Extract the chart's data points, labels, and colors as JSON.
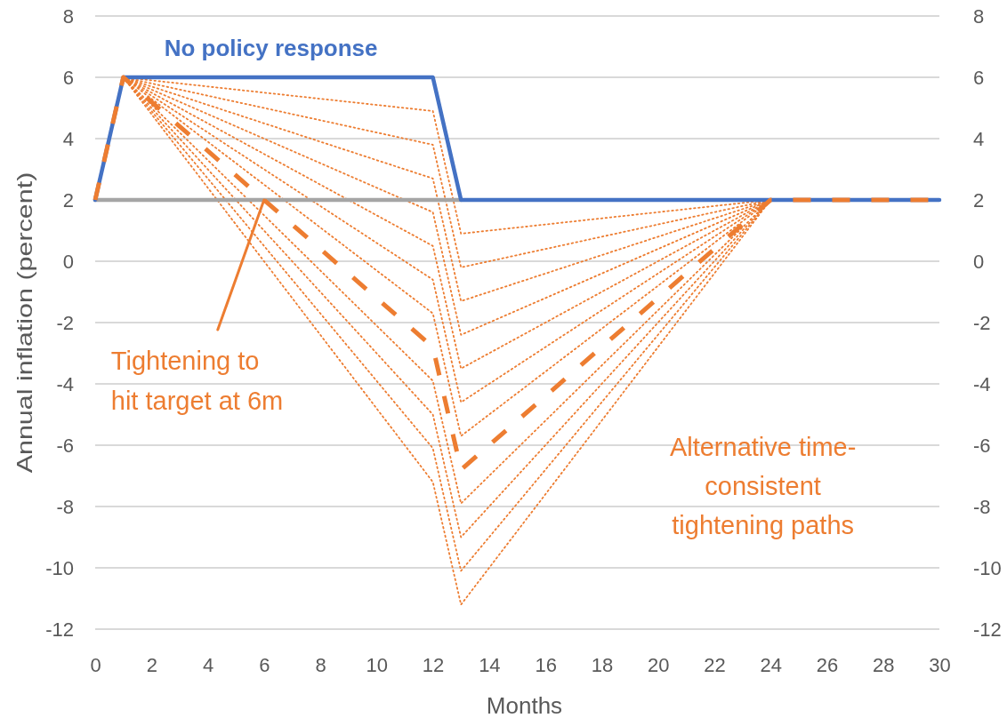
{
  "chart_data": {
    "type": "line",
    "xlabel": "Months",
    "ylabel": "Annual inflation (percent)",
    "xlim": [
      0,
      30
    ],
    "xticks": [
      0,
      2,
      4,
      6,
      8,
      10,
      12,
      14,
      16,
      18,
      20,
      22,
      24,
      26,
      28,
      30
    ],
    "ylim": [
      -12,
      8
    ],
    "yticks": [
      -12,
      -10,
      -8,
      -6,
      -4,
      -2,
      0,
      2,
      4,
      6,
      8
    ],
    "y2lim": [
      -12,
      8
    ],
    "y2ticks": [
      -12,
      -10,
      -8,
      -6,
      -4,
      -2,
      0,
      2,
      4,
      6,
      8
    ],
    "grid": "y",
    "series": [
      {
        "color": "#ed7d31",
        "line_style": "dotted",
        "x": [
          1,
          12,
          13,
          24
        ],
        "values": [
          6,
          4.9,
          0.9,
          2
        ]
      },
      {
        "color": "#ed7d31",
        "line_style": "dotted",
        "x": [
          1,
          12,
          13,
          24
        ],
        "values": [
          6,
          3.8,
          -0.2,
          2
        ]
      },
      {
        "color": "#ed7d31",
        "line_style": "dotted",
        "x": [
          1,
          12,
          13,
          24
        ],
        "values": [
          6,
          2.7,
          -1.3,
          2
        ]
      },
      {
        "color": "#ed7d31",
        "line_style": "dotted",
        "x": [
          1,
          12,
          13,
          24
        ],
        "values": [
          6,
          1.6,
          -2.4,
          2
        ]
      },
      {
        "color": "#ed7d31",
        "line_style": "dotted",
        "x": [
          1,
          12,
          13,
          24
        ],
        "values": [
          6,
          0.5,
          -3.5,
          2
        ]
      },
      {
        "color": "#ed7d31",
        "line_style": "dotted",
        "x": [
          1,
          12,
          13,
          24
        ],
        "values": [
          6,
          -0.6,
          -4.6,
          2
        ]
      },
      {
        "color": "#ed7d31",
        "line_style": "dotted",
        "x": [
          1,
          12,
          13,
          24
        ],
        "values": [
          6,
          -1.7,
          -5.7,
          2
        ]
      },
      {
        "color": "#ed7d31",
        "line_style": "dotted",
        "x": [
          1,
          12,
          13,
          24
        ],
        "values": [
          6,
          -3.9,
          -7.9,
          2
        ]
      },
      {
        "color": "#ed7d31",
        "line_style": "dotted",
        "x": [
          1,
          12,
          13,
          24
        ],
        "values": [
          6,
          -5,
          -9,
          2
        ]
      },
      {
        "color": "#ed7d31",
        "line_style": "dotted",
        "x": [
          1,
          12,
          13,
          24
        ],
        "values": [
          6,
          -6.1,
          -10.1,
          2
        ]
      },
      {
        "color": "#ed7d31",
        "line_style": "dotted",
        "x": [
          1,
          12,
          13,
          24
        ],
        "values": [
          6,
          -7.2,
          -11.2,
          2
        ]
      },
      {
        "color": "#a5a5a5",
        "line_style": "solid",
        "x": [
          0,
          13
        ],
        "values": [
          2,
          2
        ]
      },
      {
        "name": "No policy response",
        "color": "#4472c4",
        "line_style": "solid",
        "x": [
          0,
          1,
          12,
          13,
          30
        ],
        "values": [
          2,
          6,
          6,
          2,
          2
        ]
      },
      {
        "color": "#ed7d31",
        "line_style": "dashed",
        "x": [
          0,
          1,
          12,
          13,
          24,
          30
        ],
        "values": [
          2,
          6,
          -2.8,
          -6.8,
          2,
          2
        ]
      }
    ],
    "annotations": [
      {
        "text": "Tightening to hit target at 6m",
        "x": 6,
        "y": 2
      },
      "Alternative time-consistent tightening paths"
    ]
  }
}
